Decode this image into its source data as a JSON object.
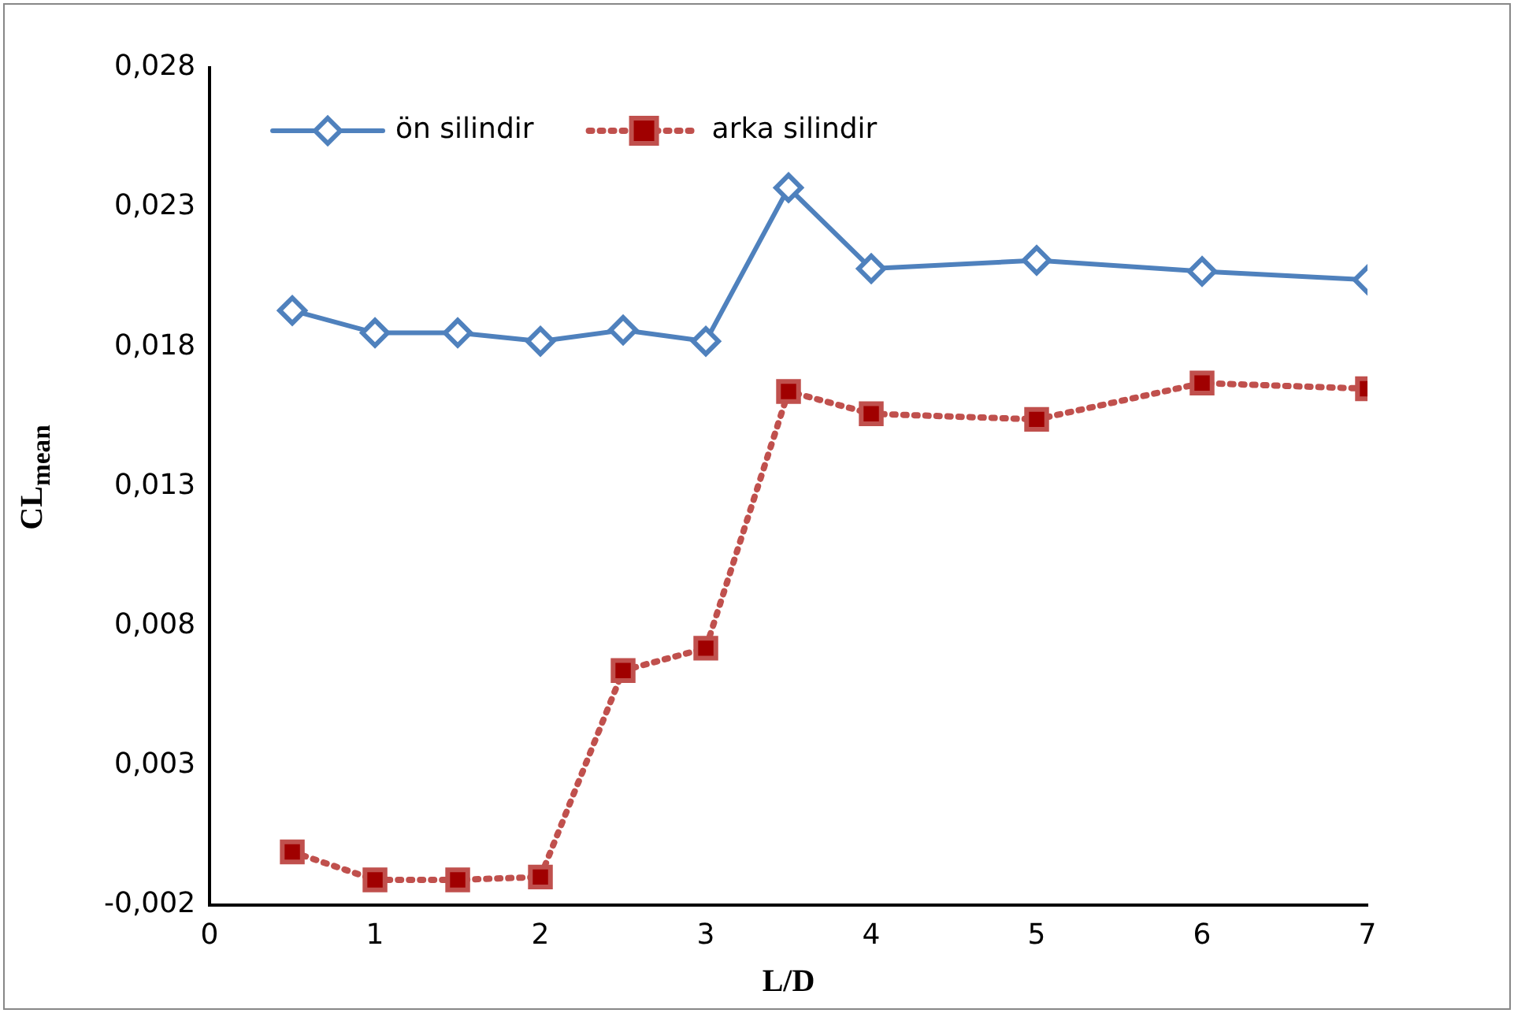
{
  "chart_data": {
    "type": "line",
    "xlabel": "L/D",
    "ylabel": "CL$_{mean}$",
    "xlim": [
      0,
      7
    ],
    "xticks": [
      0,
      1,
      2,
      3,
      4,
      5,
      6,
      7
    ],
    "ylim": [
      -0.002,
      0.028
    ],
    "yticks": [
      {
        "value": -0.002,
        "label": "-0,002"
      },
      {
        "value": 0.003,
        "label": "0,003"
      },
      {
        "value": 0.008,
        "label": "0,008"
      },
      {
        "value": 0.013,
        "label": "0,013"
      },
      {
        "value": 0.018,
        "label": "0,018"
      },
      {
        "value": 0.023,
        "label": "0,023"
      },
      {
        "value": 0.028,
        "label": "0,028"
      }
    ],
    "x": [
      0.5,
      1,
      1.5,
      2,
      2.5,
      3,
      3.5,
      4,
      5,
      6,
      7
    ],
    "series": [
      {
        "name": "ön silindir",
        "color": "#4f81bd",
        "marker": "diamond",
        "line_style": "solid",
        "values": [
          0.0193,
          0.0185,
          0.0185,
          0.0182,
          0.0186,
          0.0182,
          0.0237,
          0.0208,
          0.0211,
          0.0207,
          0.0204
        ]
      },
      {
        "name": "arka silindir",
        "color": "#c0504d",
        "marker": "square",
        "line_style": "dotted",
        "values": [
          -0.0001,
          -0.0011,
          -0.0011,
          -0.001,
          0.0064,
          0.0072,
          0.0164,
          0.0156,
          0.0154,
          0.0167,
          0.0165
        ]
      }
    ],
    "legend": "top left",
    "grid": false
  }
}
